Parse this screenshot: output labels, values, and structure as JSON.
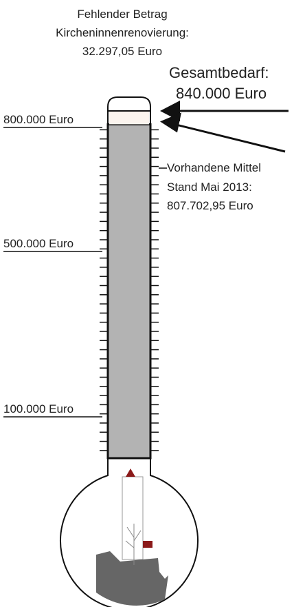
{
  "chart_data": {
    "type": "thermometer",
    "ylim": [
      0,
      840000
    ],
    "yticks": [
      {
        "value": 100000,
        "label": "100.000 Euro"
      },
      {
        "value": 500000,
        "label": "500.000 Euro"
      },
      {
        "value": 800000,
        "label": "800.000 Euro"
      }
    ],
    "missing": {
      "title": [
        "Fehlender Betrag",
        "Kircheninnenrenovierung:"
      ],
      "value": 32297.05,
      "value_label": "32.297,05 Euro",
      "color": "#fbf4ee"
    },
    "total": {
      "title": "Gesamtbedarf:",
      "value": 840000,
      "value_label": "840.000 Euro"
    },
    "current": {
      "title": [
        "Vorhandene Mittel",
        "Stand Mai  2013:"
      ],
      "value": 807702.95,
      "value_label": "807.702,95 Euro",
      "color": "#b3b3b3"
    }
  }
}
